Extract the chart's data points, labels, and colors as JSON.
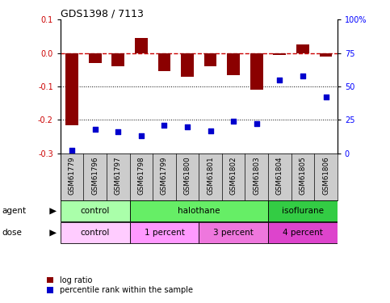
{
  "title": "GDS1398 / 7113",
  "samples": [
    "GSM61779",
    "GSM61796",
    "GSM61797",
    "GSM61798",
    "GSM61799",
    "GSM61800",
    "GSM61801",
    "GSM61802",
    "GSM61803",
    "GSM61804",
    "GSM61805",
    "GSM61806"
  ],
  "log_ratio": [
    -0.215,
    -0.03,
    -0.04,
    0.045,
    -0.055,
    -0.07,
    -0.04,
    -0.065,
    -0.11,
    -0.005,
    0.025,
    -0.01
  ],
  "percentile_rank": [
    2,
    18,
    16,
    13,
    21,
    20,
    17,
    24,
    22,
    55,
    58,
    42
  ],
  "ylim_left": [
    -0.3,
    0.1
  ],
  "ylim_right": [
    0,
    100
  ],
  "yticks_left": [
    -0.3,
    -0.2,
    -0.1,
    0.0,
    0.1
  ],
  "yticks_right": [
    0,
    25,
    50,
    75,
    100
  ],
  "bar_color": "#8B0000",
  "scatter_color": "#0000CD",
  "dashed_line_color": "#CC0000",
  "agent_groups": [
    {
      "label": "control",
      "color": "#AAFFAA",
      "start": 0,
      "end": 3
    },
    {
      "label": "halothane",
      "color": "#66EE66",
      "start": 3,
      "end": 9
    },
    {
      "label": "isoflurane",
      "color": "#33CC44",
      "start": 9,
      "end": 12
    }
  ],
  "dose_groups": [
    {
      "label": "control",
      "color": "#FFCCFF",
      "start": 0,
      "end": 3
    },
    {
      "label": "1 percent",
      "color": "#FF99FF",
      "start": 3,
      "end": 6
    },
    {
      "label": "3 percent",
      "color": "#EE77DD",
      "start": 6,
      "end": 9
    },
    {
      "label": "4 percent",
      "color": "#DD44CC",
      "start": 9,
      "end": 12
    }
  ],
  "sample_bg_color": "#CCCCCC",
  "legend_red_label": "log ratio",
  "legend_blue_label": "percentile rank within the sample"
}
